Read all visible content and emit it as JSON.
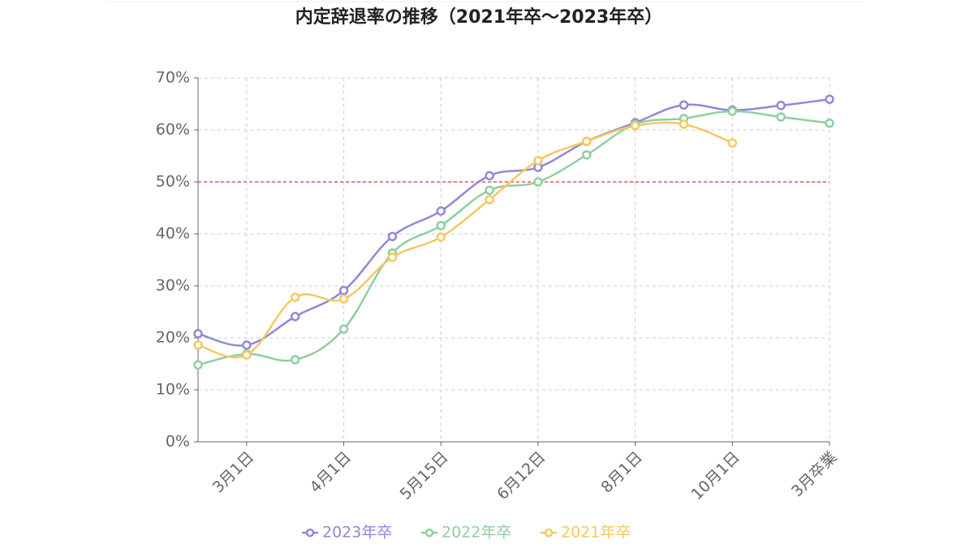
{
  "chart_data": {
    "type": "line",
    "title": "内定辞退率の推移（2021年卒～2023年卒）",
    "categories": [
      null,
      "3月1日",
      null,
      "4月1日",
      null,
      "5月15日",
      null,
      "6月12日",
      null,
      "8月1日",
      null,
      "10月1日",
      null,
      "3月卒業"
    ],
    "series": [
      {
        "name": "2023年卒",
        "color": "#9189d6",
        "values": [
          20.8,
          18.6,
          24.1,
          29.1,
          39.5,
          44.4,
          51.2,
          52.8,
          57.8,
          61.4,
          64.8,
          63.8,
          64.7,
          65.9
        ]
      },
      {
        "name": "2022年卒",
        "color": "#8fcfa0",
        "values": [
          14.8,
          16.9,
          15.8,
          21.7,
          36.3,
          41.6,
          48.4,
          50.0,
          55.2,
          61.1,
          62.2,
          63.6,
          62.5,
          61.3
        ]
      },
      {
        "name": "2021年卒",
        "color": "#f5c862",
        "values": [
          18.6,
          16.7,
          27.8,
          27.5,
          35.5,
          39.4,
          46.6,
          54.1,
          57.8,
          60.8,
          61.1,
          57.5,
          null,
          null
        ]
      }
    ],
    "ylim": [
      0,
      70
    ],
    "yticks": [
      {
        "value": 0,
        "label": "0%"
      },
      {
        "value": 10,
        "label": "10%"
      },
      {
        "value": 20,
        "label": "20%"
      },
      {
        "value": 30,
        "label": "30%"
      },
      {
        "value": 40,
        "label": "40%"
      },
      {
        "value": 50,
        "label": "50%"
      },
      {
        "value": 60,
        "label": "60%"
      },
      {
        "value": 70,
        "label": "70%"
      }
    ],
    "reference_line": {
      "value": 50,
      "color": "#e05a5a"
    },
    "grid": true,
    "legend": "bottom"
  }
}
